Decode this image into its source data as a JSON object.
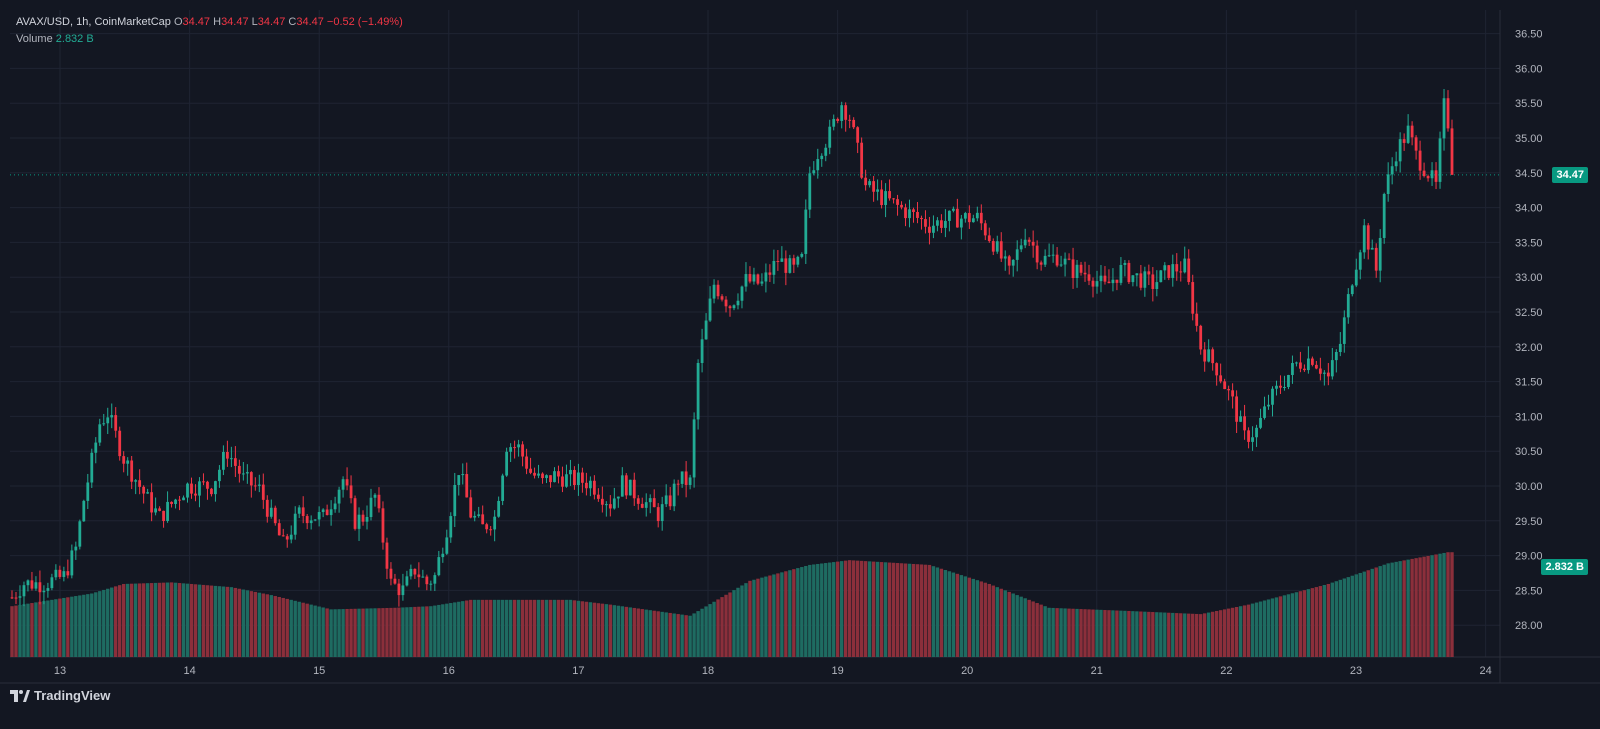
{
  "legend": {
    "symbol": "AVAX/USD, 1h, CoinMarketCap",
    "o_label": "O",
    "o_value": "34.47",
    "h_label": "H",
    "h_value": "34.47",
    "l_label": "L",
    "l_value": "34.47",
    "c_label": "C",
    "c_value": "34.47",
    "change": "−0.52 (−1.49%)",
    "volume_label": "Volume",
    "volume_value": "2.832 B"
  },
  "price_tag": {
    "text": "34.47",
    "color": "#089981"
  },
  "volume_tag": {
    "text": "2.832 B",
    "color": "#089981"
  },
  "brand": {
    "text": "TradingView",
    "icon": "tradingview-logo-icon"
  },
  "colors": {
    "up": "#22ab94",
    "down": "#f23645",
    "vol_up": "#1e6b61",
    "vol_down": "#8b2f3b",
    "background": "#131722",
    "grid": "#1f2433"
  },
  "chart_data": {
    "type": "candlestick",
    "title": "AVAX/USD, 1h, CoinMarketCap",
    "x_ticks": [
      "13",
      "14",
      "15",
      "16",
      "17",
      "18",
      "19",
      "20",
      "21",
      "22",
      "23",
      "24"
    ],
    "y_ticks": [
      "28.00",
      "28.50",
      "29.00",
      "29.50",
      "30.00",
      "30.50",
      "31.00",
      "31.50",
      "32.00",
      "32.50",
      "33.00",
      "33.50",
      "34.00",
      "34.50",
      "35.00",
      "35.50",
      "36.00",
      "36.50"
    ],
    "ylim": [
      27.6,
      36.7
    ],
    "volume_ylim": [
      0,
      4.0
    ],
    "last_price": 34.47,
    "grid": true,
    "series": [
      {
        "name": "Volume",
        "type": "bar",
        "unit": "B",
        "last": 2.832
      }
    ]
  }
}
